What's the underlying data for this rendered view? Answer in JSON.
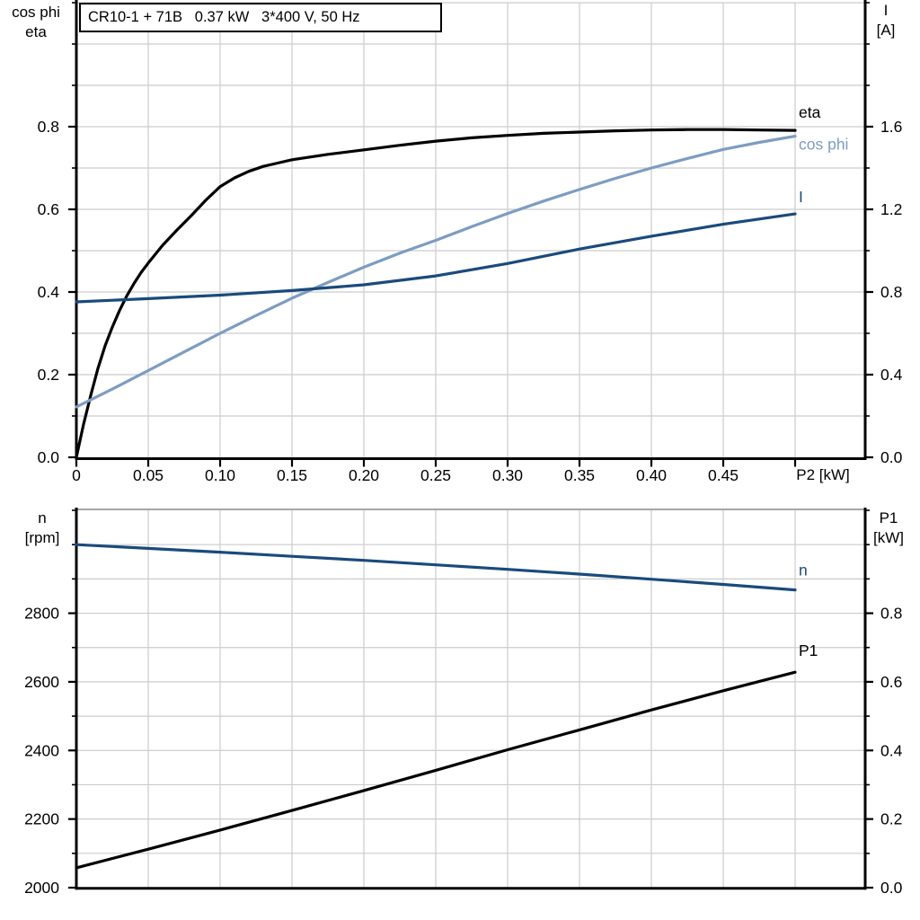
{
  "header": {
    "title": "CR10-1 + 71B   0.37 kW   3*400 V, 50 Hz"
  },
  "colors": {
    "background": "#ffffff",
    "grid": "#cccccc",
    "axis": "#000000",
    "chart2_top_border": "#888888",
    "curve_black": "#000000",
    "curve_light_blue": "#7d9cc2",
    "curve_dark_blue": "#1a4a7c"
  },
  "chart_data": [
    {
      "type": "line",
      "title": "CR10-1 + 71B   0.37 kW   3*400 V, 50 Hz",
      "x_axis": {
        "label": "P2 [kW]",
        "min": 0,
        "max": 0.549,
        "data_max": 0.5,
        "tick_step": 0.05,
        "tick_labels": [
          "0",
          "0.05",
          "0.10",
          "0.15",
          "0.20",
          "0.25",
          "0.30",
          "0.35",
          "0.40",
          "0.45"
        ]
      },
      "left_axis": {
        "title_lines": [
          "cos phi",
          "eta"
        ],
        "min": 0,
        "max": 1.1,
        "minor_step": 0.1,
        "tick_values": [
          0,
          0.2,
          0.4,
          0.6,
          0.8
        ],
        "tick_labels": [
          "0.0",
          "0.2",
          "0.4",
          "0.6",
          "0.8"
        ]
      },
      "right_axis": {
        "title_lines": [
          "I",
          "[A]"
        ],
        "min": 0,
        "max": 2.2,
        "minor_step": 0.2,
        "tick_values": [
          0,
          0.4,
          0.8,
          1.2,
          1.6
        ],
        "tick_labels": [
          "0.0",
          "0.4",
          "0.8",
          "1.2",
          "1.6"
        ]
      },
      "grid": true,
      "legend_position": "end-of-curve",
      "series": [
        {
          "name": "eta",
          "axis": "left",
          "color": "#000000",
          "points": [
            [
              0,
              0
            ],
            [
              0.005,
              0.08
            ],
            [
              0.01,
              0.15
            ],
            [
              0.015,
              0.215
            ],
            [
              0.02,
              0.27
            ],
            [
              0.025,
              0.315
            ],
            [
              0.03,
              0.355
            ],
            [
              0.035,
              0.39
            ],
            [
              0.04,
              0.42
            ],
            [
              0.045,
              0.447
            ],
            [
              0.05,
              0.47
            ],
            [
              0.06,
              0.513
            ],
            [
              0.07,
              0.55
            ],
            [
              0.08,
              0.585
            ],
            [
              0.09,
              0.622
            ],
            [
              0.1,
              0.655
            ],
            [
              0.11,
              0.676
            ],
            [
              0.12,
              0.692
            ],
            [
              0.13,
              0.704
            ],
            [
              0.14,
              0.712
            ],
            [
              0.15,
              0.72
            ],
            [
              0.175,
              0.733
            ],
            [
              0.2,
              0.744
            ],
            [
              0.225,
              0.755
            ],
            [
              0.25,
              0.765
            ],
            [
              0.275,
              0.773
            ],
            [
              0.3,
              0.779
            ],
            [
              0.325,
              0.784
            ],
            [
              0.35,
              0.787
            ],
            [
              0.375,
              0.79
            ],
            [
              0.4,
              0.792
            ],
            [
              0.425,
              0.793
            ],
            [
              0.45,
              0.793
            ],
            [
              0.475,
              0.792
            ],
            [
              0.5,
              0.791
            ]
          ]
        },
        {
          "name": "cos phi",
          "axis": "left",
          "color": "#7d9cc2",
          "points": [
            [
              0,
              0.122
            ],
            [
              0.025,
              0.165
            ],
            [
              0.05,
              0.21
            ],
            [
              0.075,
              0.255
            ],
            [
              0.1,
              0.3
            ],
            [
              0.125,
              0.343
            ],
            [
              0.15,
              0.385
            ],
            [
              0.175,
              0.423
            ],
            [
              0.2,
              0.46
            ],
            [
              0.225,
              0.494
            ],
            [
              0.25,
              0.525
            ],
            [
              0.275,
              0.558
            ],
            [
              0.3,
              0.59
            ],
            [
              0.325,
              0.62
            ],
            [
              0.35,
              0.648
            ],
            [
              0.375,
              0.675
            ],
            [
              0.4,
              0.7
            ],
            [
              0.425,
              0.723
            ],
            [
              0.45,
              0.745
            ],
            [
              0.475,
              0.762
            ],
            [
              0.5,
              0.777
            ]
          ]
        },
        {
          "name": "I",
          "axis": "right",
          "color": "#1a4a7c",
          "points": [
            [
              0,
              0.752
            ],
            [
              0.05,
              0.768
            ],
            [
              0.1,
              0.785
            ],
            [
              0.15,
              0.807
            ],
            [
              0.2,
              0.835
            ],
            [
              0.25,
              0.878
            ],
            [
              0.3,
              0.938
            ],
            [
              0.35,
              1.008
            ],
            [
              0.4,
              1.07
            ],
            [
              0.45,
              1.128
            ],
            [
              0.5,
              1.178
            ]
          ]
        }
      ]
    },
    {
      "type": "line",
      "title": "",
      "x_axis": {
        "label": "",
        "min": 0,
        "max": 0.549,
        "data_max": 0.5,
        "tick_step": 0.05,
        "tick_labels": []
      },
      "left_axis": {
        "title_lines": [
          "n",
          "[rpm]"
        ],
        "min": 2000,
        "max": 3100,
        "minor_step": 100,
        "tick_values": [
          2000,
          2200,
          2400,
          2600,
          2800
        ],
        "tick_labels": [
          "2000",
          "2200",
          "2400",
          "2600",
          "2800"
        ]
      },
      "right_axis": {
        "title_lines": [
          "P1",
          "[kW]"
        ],
        "min": 0,
        "max": 1.1,
        "minor_step": 0.1,
        "tick_values": [
          0,
          0.2,
          0.4,
          0.6,
          0.8
        ],
        "tick_labels": [
          "0.0",
          "0.2",
          "0.4",
          "0.6",
          "0.8"
        ]
      },
      "grid": true,
      "legend_position": "end-of-curve",
      "series": [
        {
          "name": "n",
          "axis": "left",
          "color": "#1a4a7c",
          "points": [
            [
              0,
              3000
            ],
            [
              0.05,
              2989
            ],
            [
              0.1,
              2978
            ],
            [
              0.15,
              2966
            ],
            [
              0.2,
              2954
            ],
            [
              0.25,
              2941
            ],
            [
              0.3,
              2928
            ],
            [
              0.35,
              2914
            ],
            [
              0.4,
              2899
            ],
            [
              0.45,
              2884
            ],
            [
              0.5,
              2868
            ]
          ]
        },
        {
          "name": "P1",
          "axis": "right",
          "color": "#000000",
          "points": [
            [
              0,
              0.058
            ],
            [
              0.05,
              0.112
            ],
            [
              0.1,
              0.168
            ],
            [
              0.15,
              0.225
            ],
            [
              0.2,
              0.283
            ],
            [
              0.25,
              0.342
            ],
            [
              0.3,
              0.402
            ],
            [
              0.35,
              0.46
            ],
            [
              0.4,
              0.518
            ],
            [
              0.45,
              0.574
            ],
            [
              0.5,
              0.628
            ]
          ]
        }
      ]
    }
  ]
}
